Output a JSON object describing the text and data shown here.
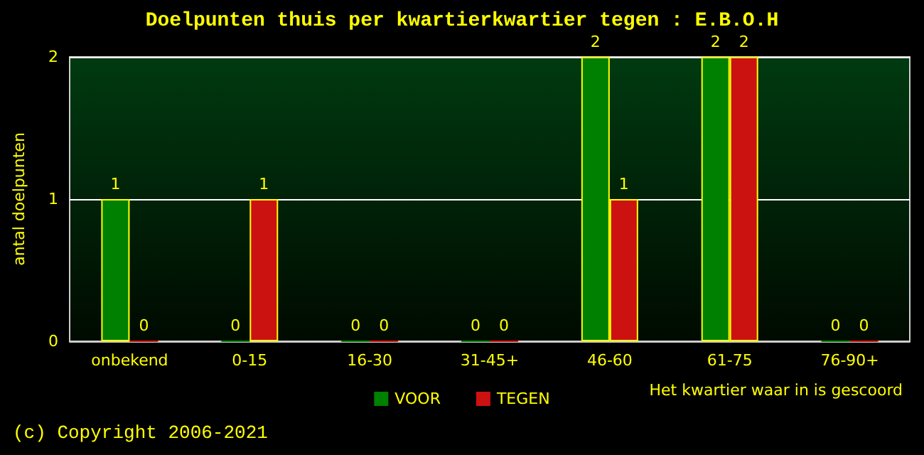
{
  "chart_data": {
    "type": "bar",
    "title": "Doelpunten thuis per kwartierkwartier tegen : E.B.O.H",
    "xlabel": "Het kwartier waar in is gescoord",
    "ylabel": "antal doelpunten",
    "categories": [
      "onbekend",
      "0-15",
      "16-30",
      "31-45+",
      "46-60",
      "61-75",
      "76-90+"
    ],
    "series": [
      {
        "name": "VOOR",
        "color": "#008000",
        "values": [
          1,
          0,
          0,
          0,
          2,
          2,
          0
        ]
      },
      {
        "name": "TEGEN",
        "color": "#cc1111",
        "values": [
          0,
          1,
          0,
          0,
          1,
          2,
          0
        ]
      }
    ],
    "ylim": [
      0,
      2
    ],
    "yticks": [
      0,
      1,
      2
    ],
    "grid": "y",
    "legend": "bottom",
    "data_labels": true,
    "annotations": [
      "(c) Copyright 2006-2021"
    ]
  }
}
